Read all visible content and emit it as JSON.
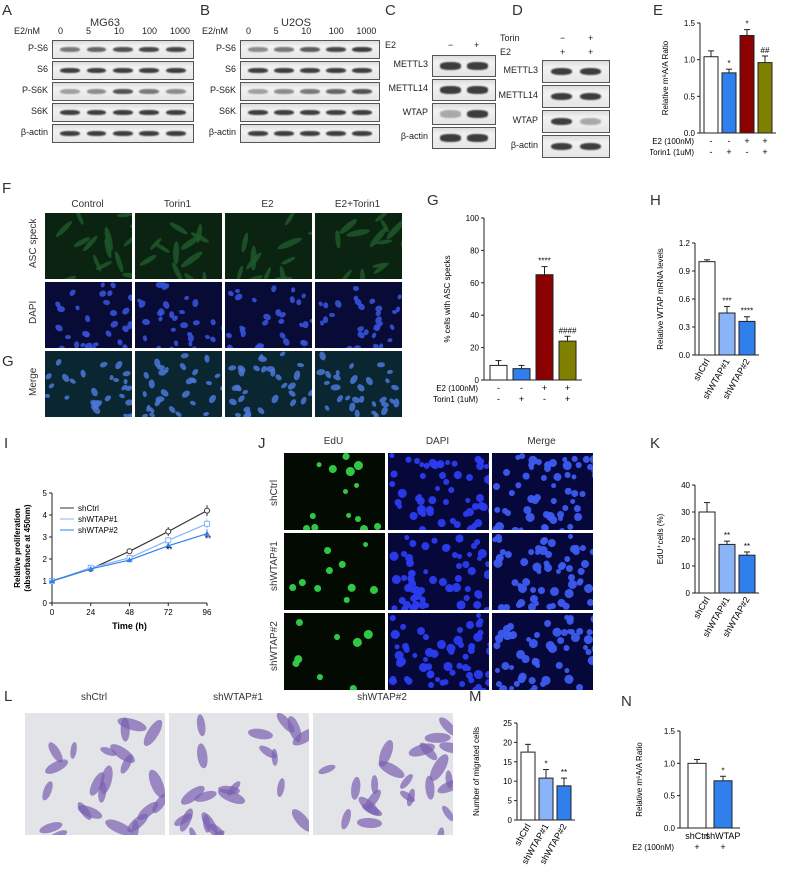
{
  "panels": {
    "A": {
      "letter": "A",
      "title": "MG63",
      "dose_label": "E2/nM",
      "doses": [
        "0",
        "5",
        "10",
        "100",
        "1000"
      ],
      "rows": [
        "P-S6",
        "S6",
        "P-S6K",
        "S6K",
        "β-actin"
      ]
    },
    "B": {
      "letter": "B",
      "title": "U2OS",
      "dose_label": "E2/nM",
      "doses": [
        "0",
        "5",
        "10",
        "100",
        "1000"
      ],
      "rows": [
        "P-S6",
        "S6",
        "P-S6K",
        "S6K",
        "β-actin"
      ]
    },
    "C": {
      "letter": "C",
      "cond_label": "E2",
      "conds": [
        "−",
        "+"
      ],
      "rows": [
        "METTL3",
        "METTL14",
        "WTAP",
        "β-actin"
      ]
    },
    "D": {
      "letter": "D",
      "cond_labels": [
        "Torin",
        "E2"
      ],
      "conds": [
        [
          "−",
          "+"
        ],
        [
          "+",
          "+"
        ]
      ],
      "rows": [
        "METTL3",
        "METTL14",
        "WTAP",
        "β-actin"
      ]
    },
    "E": {
      "letter": "E"
    },
    "F": {
      "letter": "F",
      "columns": [
        "Control",
        "Torin1",
        "E2",
        "E2+Torin1"
      ],
      "rows": [
        "ASC speck",
        "DAPI",
        "Merge"
      ]
    },
    "F2": {
      "letter": "G"
    },
    "G": {
      "letter": "G"
    },
    "H": {
      "letter": "H"
    },
    "I": {
      "letter": "I"
    },
    "J": {
      "letter": "J",
      "columns": [
        "EdU",
        "DAPI",
        "Merge"
      ],
      "rows": [
        "shCtrl",
        "shWTAP#1",
        "shWTAP#2"
      ]
    },
    "K": {
      "letter": "K"
    },
    "L": {
      "letter": "L",
      "columns": [
        "shCtrl",
        "shWTAP#1",
        "shWTAP#2"
      ]
    },
    "M": {
      "letter": "M"
    },
    "N": {
      "letter": "N"
    }
  },
  "chart_data": [
    {
      "id": "E",
      "type": "bar",
      "ylabel": "Relative m⁶A/A Ratio",
      "ylim": [
        0,
        1.5
      ],
      "yticks": [
        "0.0",
        "0.5",
        "1.0",
        "1.5"
      ],
      "values": [
        1.04,
        0.82,
        1.33,
        0.96
      ],
      "errors": [
        0.08,
        0.05,
        0.08,
        0.09
      ],
      "colors": [
        "#ffffff",
        "#2f80ed",
        "#8b0000",
        "#808000"
      ],
      "sig": [
        "",
        "*",
        "*",
        "##"
      ],
      "conditions": [
        {
          "label": "E2 (100nM)",
          "values": [
            "-",
            "-",
            "+",
            "+"
          ]
        },
        {
          "label": "Torin1 (1uM)",
          "values": [
            "-",
            "+",
            "-",
            "+"
          ]
        }
      ]
    },
    {
      "id": "G",
      "type": "bar",
      "ylabel": "% cells with ASC specks",
      "ylim": [
        0,
        100
      ],
      "yticks": [
        "0",
        "20",
        "40",
        "60",
        "80",
        "100"
      ],
      "values": [
        9,
        7,
        65,
        24
      ],
      "errors": [
        3,
        2,
        5,
        3
      ],
      "colors": [
        "#ffffff",
        "#2f80ed",
        "#8b0000",
        "#808000"
      ],
      "sig": [
        "",
        "",
        "****",
        "####"
      ],
      "conditions": [
        {
          "label": "E2 (100nM)",
          "values": [
            "-",
            "-",
            "+",
            "+"
          ]
        },
        {
          "label": "Torin1 (1uM)",
          "values": [
            "-",
            "+",
            "-",
            "+"
          ]
        }
      ]
    },
    {
      "id": "H",
      "type": "bar",
      "ylabel": "Relative WTAP mRNA  levels",
      "ylim": [
        0,
        1.2
      ],
      "yticks": [
        "0.0",
        "0.3",
        "0.6",
        "0.9",
        "1.2"
      ],
      "categories": [
        "shCtrl",
        "shWTAP#1",
        "shWTAP#2"
      ],
      "values": [
        1.0,
        0.45,
        0.36
      ],
      "errors": [
        0.02,
        0.07,
        0.05
      ],
      "colors": [
        "#ffffff",
        "#8ab4f8",
        "#2f80ed"
      ],
      "sig": [
        "",
        "***",
        "****"
      ]
    },
    {
      "id": "I",
      "type": "line",
      "xlabel": "Time (h)",
      "ylabel": "Relative proliferation\n(absorbance at 450nm)",
      "xlim": [
        0,
        96
      ],
      "ylim": [
        0,
        5
      ],
      "x": [
        0,
        24,
        48,
        72,
        96
      ],
      "xticks": [
        "0",
        "24",
        "48",
        "72",
        "96"
      ],
      "yticks": [
        "0",
        "1",
        "2",
        "3",
        "4",
        "5"
      ],
      "series": [
        {
          "name": "shCtrl",
          "values": [
            1.0,
            1.55,
            2.35,
            3.25,
            4.2
          ],
          "errors": [
            0.05,
            0.08,
            0.12,
            0.2,
            0.25
          ],
          "color": "#333333"
        },
        {
          "name": "shWTAP#1",
          "values": [
            1.0,
            1.6,
            2.05,
            2.85,
            3.6
          ],
          "errors": [
            0.05,
            0.08,
            0.1,
            0.15,
            0.2
          ],
          "color": "#8ab4f8"
        },
        {
          "name": "shWTAP#2",
          "values": [
            1.0,
            1.55,
            1.95,
            2.6,
            3.15
          ],
          "errors": [
            0.05,
            0.08,
            0.1,
            0.15,
            0.2
          ],
          "color": "#2f80ed"
        }
      ],
      "sig_at_72": "**",
      "sig_at_96": "**"
    },
    {
      "id": "K",
      "type": "bar",
      "ylabel": "EdU⁺cells (%)",
      "ylim": [
        0,
        40
      ],
      "yticks": [
        "0",
        "10",
        "20",
        "30",
        "40"
      ],
      "categories": [
        "shCtrl",
        "shWTAP#1",
        "shWTAP#2"
      ],
      "values": [
        30,
        18,
        14
      ],
      "errors": [
        3.5,
        1.2,
        1.2
      ],
      "colors": [
        "#ffffff",
        "#8ab4f8",
        "#2f80ed"
      ],
      "sig": [
        "",
        "**",
        "**"
      ]
    },
    {
      "id": "M",
      "type": "bar",
      "ylabel": "Number of migrated cells",
      "ylim": [
        0,
        25
      ],
      "yticks": [
        "0",
        "5",
        "10",
        "15",
        "20",
        "25"
      ],
      "categories": [
        "shCtrl",
        "shWTAP#1",
        "shWTAP#2"
      ],
      "values": [
        17.5,
        10.8,
        8.8
      ],
      "errors": [
        2,
        2.2,
        2
      ],
      "colors": [
        "#ffffff",
        "#8ab4f8",
        "#2f80ed"
      ],
      "sig": [
        "",
        "*",
        "**"
      ]
    },
    {
      "id": "N",
      "type": "bar",
      "ylabel": "Relative m⁶A/A Ratio",
      "ylim": [
        0,
        1.5
      ],
      "yticks": [
        "0.0",
        "0.5",
        "1.0",
        "1.5"
      ],
      "categories": [
        "shCtrl",
        "shWTAP"
      ],
      "values": [
        1.0,
        0.73
      ],
      "errors": [
        0.06,
        0.07
      ],
      "colors": [
        "#ffffff",
        "#2f80ed"
      ],
      "sig": [
        "",
        "*"
      ],
      "conditions": [
        {
          "label": "E2 (100nM)",
          "values": [
            "+",
            "+"
          ]
        }
      ]
    }
  ]
}
